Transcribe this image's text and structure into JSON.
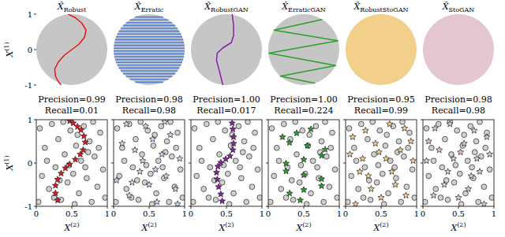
{
  "chart_data": [
    {
      "type": "line",
      "title": "X̂Robust",
      "ylabel": "X(1)",
      "xlim": [
        0,
        1
      ],
      "ylim": [
        -1,
        1
      ],
      "yticks": [
        -1,
        0,
        1
      ],
      "tick_labels": "y",
      "color": "#c6c6c6",
      "series": [
        {
          "color": "#e8141c",
          "x": [
            0.45,
            0.55,
            0.64,
            0.7,
            0.68,
            0.6,
            0.5,
            0.4,
            0.31,
            0.26,
            0.27,
            0.31,
            0.35
          ],
          "values": [
            1,
            0.9,
            0.75,
            0.55,
            0.35,
            0.15,
            0,
            -0.15,
            -0.35,
            -0.55,
            -0.75,
            -0.9,
            -1
          ]
        }
      ]
    },
    {
      "type": "line",
      "title": "X̂Erratic",
      "xlim": [
        0,
        1
      ],
      "ylim": [
        -1,
        1
      ],
      "tick_labels": false,
      "color": "#c6c6c6",
      "series": [
        {
          "type": "hlines",
          "color": "#4f7fd6",
          "values": [
            -0.92,
            -0.84,
            -0.76,
            -0.68,
            -0.6,
            -0.52,
            -0.44,
            -0.36,
            -0.28,
            -0.2,
            -0.12,
            -0.04,
            0.04,
            0.12,
            0.2,
            0.28,
            0.36,
            0.44,
            0.52,
            0.6,
            0.68,
            0.76,
            0.84,
            0.92
          ]
        }
      ]
    },
    {
      "type": "line",
      "title": "X̂RobustGAN",
      "xlim": [
        0,
        1
      ],
      "ylim": [
        -1,
        1
      ],
      "tick_labels": false,
      "color": "#c6c6c6",
      "series": [
        {
          "color": "#8b1fa9",
          "x": [
            0.58,
            0.6,
            0.6,
            0.57,
            0.45,
            0.37,
            0.36,
            0.4,
            0.45
          ],
          "values": [
            1,
            0.7,
            0.4,
            0.2,
            0.05,
            -0.1,
            -0.3,
            -0.6,
            -1
          ]
        }
      ]
    },
    {
      "type": "line",
      "title": "X̂ErraticGAN",
      "xlim": [
        0,
        1
      ],
      "ylim": [
        -1,
        1
      ],
      "tick_labels": false,
      "color": "#c6c6c6",
      "series": [
        {
          "color": "#2ca02c",
          "x": [
            0.76,
            0.08,
            0.98,
            0.01,
            0.95,
            0.17,
            0.66
          ],
          "values": [
            0.85,
            0.55,
            0.25,
            -0.1,
            -0.45,
            -0.75,
            -0.95
          ]
        }
      ]
    },
    {
      "type": "line",
      "title": "X̂RobustStoGAN",
      "xlim": [
        0,
        1
      ],
      "ylim": [
        -1,
        1
      ],
      "tick_labels": false,
      "color": "#f2cf8a",
      "series": []
    },
    {
      "type": "line",
      "title": "X̂StoGAN",
      "xlim": [
        0,
        1
      ],
      "ylim": [
        -1,
        1
      ],
      "tick_labels": false,
      "color": "#e3c6cf",
      "series": []
    },
    {
      "type": "scatter",
      "title": "Precision=0.99",
      "subtitle": "Recall=0.01",
      "xlabel": "X(2)",
      "ylabel": "X(1)",
      "xlim": [
        0,
        1
      ],
      "ylim": [
        -1,
        1
      ],
      "xticks": [
        0,
        0.5,
        1
      ],
      "yticks": [
        -1,
        0,
        1
      ],
      "tick_labels": true,
      "series": [
        {
          "marker": "circle",
          "color": "#d0d0d0",
          "x": [
            0.05,
            0.12,
            0.18,
            0.22,
            0.27,
            0.31,
            0.35,
            0.4,
            0.44,
            0.48,
            0.52,
            0.56,
            0.6,
            0.63,
            0.67,
            0.71,
            0.75,
            0.78,
            0.82,
            0.86,
            0.9,
            0.94,
            0.08,
            0.15,
            0.25,
            0.38,
            0.46,
            0.58,
            0.69,
            0.8,
            0.88,
            0.97,
            0.03,
            0.33,
            0.54,
            0.73
          ],
          "values": [
            0.8,
            0.35,
            -0.6,
            0.9,
            -0.1,
            0.55,
            -0.85,
            0.2,
            -0.45,
            0.75,
            -0.25,
            0.4,
            -0.7,
            0.05,
            0.85,
            -0.35,
            0.5,
            -0.9,
            0.15,
            -0.55,
            0.7,
            -0.15,
            -0.3,
            0.05,
            -0.8,
            0.95,
            -0.05,
            0.65,
            -0.1,
            0.95,
            0.35,
            -0.8,
            -0.9,
            -0.4,
            -0.95,
            0.25
          ]
        },
        {
          "marker": "star",
          "color": "#e8141c",
          "x": [
            0.47,
            0.52,
            0.58,
            0.63,
            0.67,
            0.69,
            0.66,
            0.62,
            0.55,
            0.47,
            0.41,
            0.35,
            0.3,
            0.27,
            0.27,
            0.3
          ],
          "values": [
            0.97,
            0.92,
            0.84,
            0.76,
            0.62,
            0.48,
            0.3,
            0.2,
            0.08,
            -0.03,
            -0.12,
            -0.24,
            -0.38,
            -0.52,
            -0.7,
            -0.86
          ]
        }
      ]
    },
    {
      "type": "scatter",
      "title": "Precision=0.98",
      "subtitle": "Recall=0.98",
      "xlabel": "X(2)",
      "xlim": [
        0,
        1
      ],
      "ylim": [
        -1,
        1
      ],
      "xticks": [
        0,
        0.5,
        1
      ],
      "yticks": [
        -1,
        0,
        1
      ],
      "tick_labels": "x",
      "series": [
        {
          "marker": "circle",
          "color": "#d0d0d0",
          "x": [
            0.05,
            0.12,
            0.18,
            0.22,
            0.27,
            0.31,
            0.35,
            0.4,
            0.44,
            0.48,
            0.52,
            0.56,
            0.6,
            0.63,
            0.67,
            0.71,
            0.75,
            0.78,
            0.82,
            0.86,
            0.9,
            0.94,
            0.08,
            0.15,
            0.25,
            0.38,
            0.46,
            0.58,
            0.69,
            0.8,
            0.88,
            0.97,
            0.03,
            0.33,
            0.54,
            0.73
          ],
          "values": [
            0.8,
            0.35,
            -0.6,
            0.9,
            -0.1,
            0.55,
            -0.85,
            0.2,
            -0.45,
            0.75,
            -0.25,
            0.4,
            -0.7,
            0.05,
            0.85,
            -0.35,
            0.5,
            -0.9,
            0.15,
            -0.55,
            0.7,
            -0.15,
            -0.3,
            0.05,
            -0.8,
            0.95,
            -0.05,
            0.65,
            -0.1,
            0.95,
            0.35,
            -0.8,
            -0.9,
            -0.4,
            -0.95,
            0.25
          ]
        },
        {
          "marker": "star",
          "color": "#c9d6f0",
          "x": [
            0.12,
            0.22,
            0.3,
            0.37,
            0.45,
            0.5,
            0.55,
            0.61,
            0.68,
            0.74,
            0.8,
            0.87,
            0.93,
            0.18,
            0.26,
            0.41,
            0.59,
            0.72,
            0.9,
            0.04
          ],
          "values": [
            0.45,
            -0.75,
            0.3,
            -0.2,
            0.85,
            -0.5,
            0.55,
            -0.9,
            0.2,
            -0.3,
            0.65,
            -0.6,
            0.1,
            0.9,
            -0.45,
            0.05,
            -0.15,
            0.95,
            -0.95,
            -0.4
          ]
        }
      ]
    },
    {
      "type": "scatter",
      "title": "Precision=1.00",
      "subtitle": "Recall=0.017",
      "xlabel": "X(2)",
      "xlim": [
        0,
        1
      ],
      "ylim": [
        -1,
        1
      ],
      "xticks": [
        0,
        0.5,
        1
      ],
      "yticks": [
        -1,
        0,
        1
      ],
      "tick_labels": "x",
      "series": [
        {
          "marker": "circle",
          "color": "#d0d0d0",
          "x": [
            0.05,
            0.12,
            0.18,
            0.22,
            0.27,
            0.31,
            0.35,
            0.4,
            0.44,
            0.48,
            0.52,
            0.56,
            0.6,
            0.63,
            0.67,
            0.71,
            0.75,
            0.78,
            0.82,
            0.86,
            0.9,
            0.94,
            0.08,
            0.15,
            0.25,
            0.38,
            0.46,
            0.58,
            0.69,
            0.8,
            0.88,
            0.97,
            0.03,
            0.33,
            0.54,
            0.73
          ],
          "values": [
            0.8,
            0.35,
            -0.6,
            0.9,
            -0.1,
            0.55,
            -0.85,
            0.2,
            -0.45,
            0.75,
            -0.25,
            0.4,
            -0.7,
            0.05,
            0.85,
            -0.35,
            0.5,
            -0.9,
            0.15,
            -0.55,
            0.7,
            -0.15,
            -0.3,
            0.05,
            -0.8,
            0.95,
            -0.05,
            0.65,
            -0.1,
            0.95,
            0.35,
            -0.8,
            -0.9,
            -0.4,
            -0.95,
            0.25
          ]
        },
        {
          "marker": "star",
          "color": "#8b1fa9",
          "x": [
            0.58,
            0.59,
            0.6,
            0.6,
            0.59,
            0.55,
            0.49,
            0.42,
            0.38,
            0.36,
            0.37,
            0.39,
            0.42,
            0.44
          ],
          "values": [
            0.92,
            0.78,
            0.6,
            0.45,
            0.3,
            0.16,
            0.09,
            0.01,
            -0.08,
            -0.22,
            -0.38,
            -0.55,
            -0.72,
            -0.88
          ]
        }
      ]
    },
    {
      "type": "scatter",
      "title": "Precision=1.00",
      "subtitle": "Recall=0.224",
      "xlabel": "X(2)",
      "xlim": [
        0,
        1
      ],
      "ylim": [
        -1,
        1
      ],
      "xticks": [
        0,
        0.5,
        1
      ],
      "yticks": [
        -1,
        0,
        1
      ],
      "tick_labels": "x",
      "series": [
        {
          "marker": "circle",
          "color": "#d0d0d0",
          "x": [
            0.05,
            0.12,
            0.18,
            0.22,
            0.27,
            0.31,
            0.35,
            0.4,
            0.44,
            0.48,
            0.52,
            0.56,
            0.6,
            0.63,
            0.67,
            0.71,
            0.75,
            0.78,
            0.82,
            0.86,
            0.9,
            0.94,
            0.08,
            0.15,
            0.25,
            0.38,
            0.46,
            0.58,
            0.69,
            0.8,
            0.88,
            0.97,
            0.03,
            0.33,
            0.54,
            0.73
          ],
          "values": [
            0.8,
            0.35,
            -0.6,
            0.9,
            -0.1,
            0.55,
            -0.85,
            0.2,
            -0.45,
            0.75,
            -0.25,
            0.4,
            -0.7,
            0.05,
            0.85,
            -0.35,
            0.5,
            -0.9,
            0.15,
            -0.55,
            0.7,
            -0.15,
            -0.3,
            0.05,
            -0.8,
            0.95,
            -0.05,
            0.65,
            -0.1,
            0.95,
            0.35,
            -0.8,
            -0.9,
            -0.4,
            -0.95,
            0.25
          ]
        },
        {
          "marker": "star",
          "color": "#2ca02c",
          "x": [
            0.6,
            0.4,
            0.2,
            0.3,
            0.55,
            0.8,
            0.75,
            0.5,
            0.25,
            0.25,
            0.5,
            0.75,
            0.75,
            0.5,
            0.3,
            0.45
          ],
          "values": [
            0.78,
            0.69,
            0.6,
            0.47,
            0.4,
            0.31,
            0.17,
            0.08,
            -0.01,
            -0.19,
            -0.28,
            -0.37,
            -0.53,
            -0.62,
            -0.7,
            -0.86
          ]
        }
      ]
    },
    {
      "type": "scatter",
      "title": "Precision=0.95",
      "subtitle": "Recall=0.99",
      "xlabel": "X(2)",
      "xlim": [
        0,
        1
      ],
      "ylim": [
        -1,
        1
      ],
      "xticks": [
        0,
        0.5,
        1
      ],
      "yticks": [
        -1,
        0,
        1
      ],
      "tick_labels": "x",
      "series": [
        {
          "marker": "circle",
          "color": "#d0d0d0",
          "x": [
            0.05,
            0.12,
            0.18,
            0.22,
            0.27,
            0.31,
            0.35,
            0.4,
            0.44,
            0.48,
            0.52,
            0.56,
            0.6,
            0.63,
            0.67,
            0.71,
            0.75,
            0.78,
            0.82,
            0.86,
            0.9,
            0.94,
            0.08,
            0.15,
            0.25,
            0.38,
            0.46,
            0.58,
            0.69,
            0.8,
            0.88,
            0.97,
            0.03,
            0.33,
            0.54,
            0.73
          ],
          "values": [
            0.8,
            0.35,
            -0.6,
            0.9,
            -0.1,
            0.55,
            -0.85,
            0.2,
            -0.45,
            0.75,
            -0.25,
            0.4,
            -0.7,
            0.05,
            0.85,
            -0.35,
            0.5,
            -0.9,
            0.15,
            -0.55,
            0.7,
            -0.15,
            -0.3,
            0.05,
            -0.8,
            0.95,
            -0.05,
            0.65,
            -0.1,
            0.95,
            0.35,
            -0.8,
            -0.9,
            -0.4,
            -0.95,
            0.25
          ]
        },
        {
          "marker": "star",
          "color": "#f2cf8a",
          "x": [
            0.1,
            0.2,
            0.28,
            0.36,
            0.42,
            0.5,
            0.57,
            0.62,
            0.7,
            0.77,
            0.85,
            0.92,
            0.14,
            0.24,
            0.47,
            0.65,
            0.83,
            0.95,
            0.32,
            0.06
          ],
          "values": [
            0.6,
            -0.2,
            0.75,
            -0.6,
            0.45,
            -0.8,
            0.1,
            0.9,
            -0.5,
            0.3,
            -0.75,
            0.5,
            -0.95,
            0.1,
            0.25,
            -0.2,
            0.8,
            0.05,
            -0.3,
            0.2
          ]
        }
      ]
    },
    {
      "type": "scatter",
      "title": "Precision=0.98",
      "subtitle": "Recall=0.98",
      "xlabel": "X(2)",
      "xlim": [
        0,
        1
      ],
      "ylim": [
        -1,
        1
      ],
      "xticks": [
        0,
        0.5,
        1
      ],
      "yticks": [
        -1,
        0,
        1
      ],
      "tick_labels": "x",
      "series": [
        {
          "marker": "circle",
          "color": "#d0d0d0",
          "x": [
            0.05,
            0.12,
            0.18,
            0.22,
            0.27,
            0.31,
            0.35,
            0.4,
            0.44,
            0.48,
            0.52,
            0.56,
            0.6,
            0.63,
            0.67,
            0.71,
            0.75,
            0.78,
            0.82,
            0.86,
            0.9,
            0.94,
            0.08,
            0.15,
            0.25,
            0.38,
            0.46,
            0.58,
            0.69,
            0.8,
            0.88,
            0.97,
            0.03,
            0.33,
            0.54,
            0.73
          ],
          "values": [
            0.8,
            0.35,
            -0.6,
            0.9,
            -0.1,
            0.55,
            -0.85,
            0.2,
            -0.45,
            0.75,
            -0.25,
            0.4,
            -0.7,
            0.05,
            0.85,
            -0.35,
            0.5,
            -0.9,
            0.15,
            -0.55,
            0.7,
            -0.15,
            -0.3,
            0.05,
            -0.8,
            0.95,
            -0.05,
            0.65,
            -0.1,
            0.95,
            0.35,
            -0.8,
            -0.9,
            -0.4,
            -0.95,
            0.25
          ]
        },
        {
          "marker": "star",
          "color": "#e3c6cf",
          "x": [
            0.9,
            0.8,
            0.72,
            0.64,
            0.58,
            0.5,
            0.43,
            0.38,
            0.3,
            0.23,
            0.15,
            0.08,
            0.86,
            0.76,
            0.53,
            0.35,
            0.17,
            0.05,
            0.68,
            0.94
          ],
          "values": [
            0.6,
            -0.2,
            0.75,
            -0.6,
            0.45,
            -0.8,
            0.1,
            0.9,
            -0.5,
            0.3,
            -0.75,
            0.5,
            -0.95,
            0.1,
            0.25,
            -0.2,
            0.8,
            0.05,
            -0.3,
            0.2
          ]
        }
      ]
    }
  ]
}
